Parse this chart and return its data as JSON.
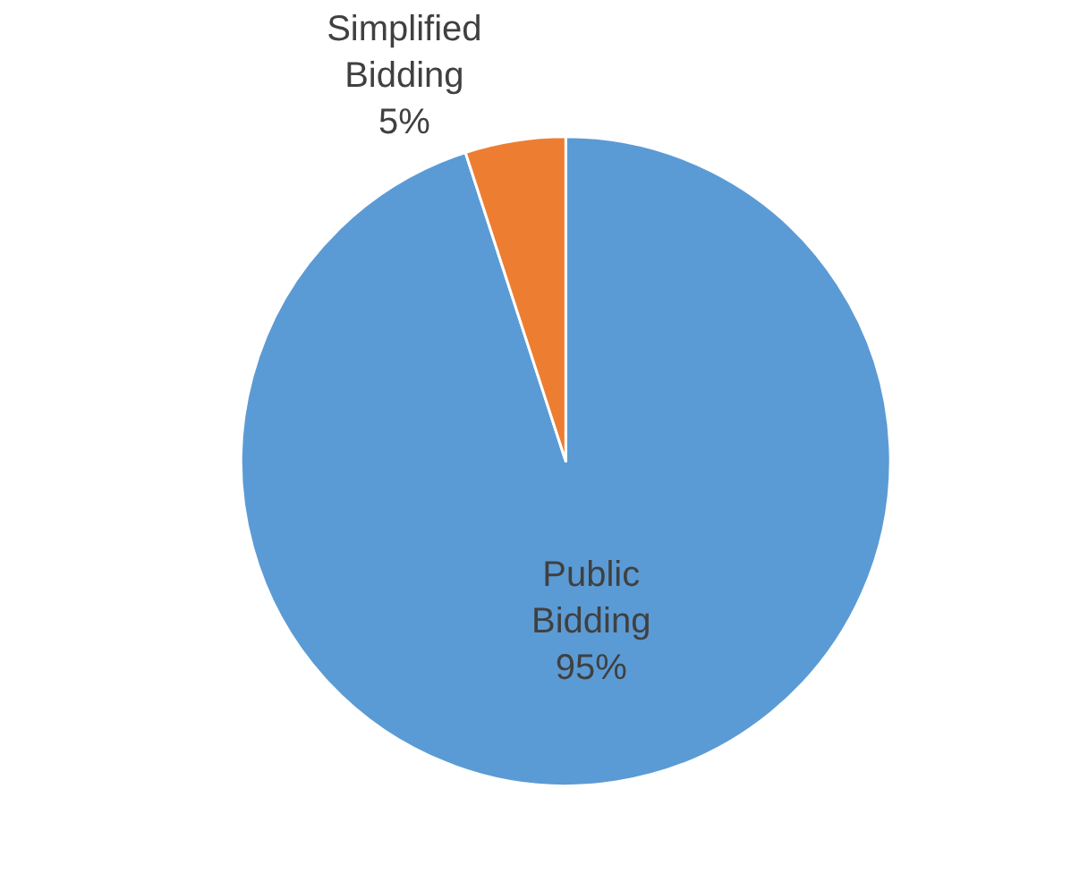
{
  "chart_data": {
    "type": "pie",
    "categories": [
      "Public Bidding",
      "Simplified Bidding"
    ],
    "values": [
      95,
      5
    ],
    "colors": [
      "#5b9bd5",
      "#ed7d31"
    ],
    "value_labels": [
      "95%",
      "5%"
    ],
    "legend": false
  }
}
